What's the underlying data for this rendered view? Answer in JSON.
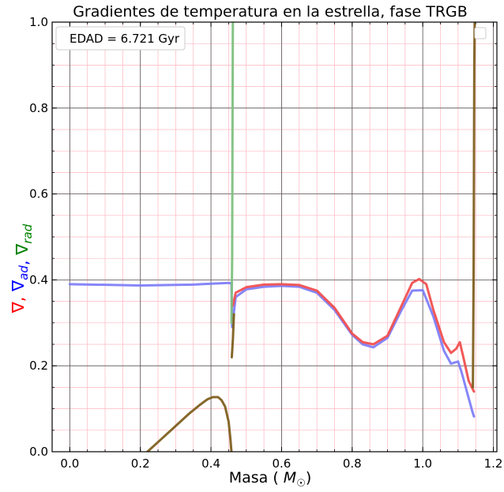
{
  "chart_data": {
    "type": "line",
    "title": "Gradientes de temperatura en la estrella, fase TRGB",
    "xlabel": "Masa (M☉)",
    "ylabel_parts": [
      {
        "text": "∇",
        "color": "#ff0000"
      },
      {
        "text": ", ",
        "color": "#ff0000"
      },
      {
        "text": "∇",
        "sub": "ad",
        "color": "#0000ff"
      },
      {
        "text": ", ",
        "color": "#0000ff"
      },
      {
        "text": "∇",
        "sub": "rad",
        "color": "#008000"
      }
    ],
    "xlim": [
      -0.05,
      1.21
    ],
    "ylim": [
      0.0,
      1.0
    ],
    "xticks": [
      "0.0",
      "0.2",
      "0.4",
      "0.6",
      "0.8",
      "1.0",
      "1.2"
    ],
    "xtick_values": [
      0.0,
      0.2,
      0.4,
      0.6,
      0.8,
      1.0,
      1.2
    ],
    "yticks": [
      "0.0",
      "0.2",
      "0.4",
      "0.6",
      "0.8",
      "1.0"
    ],
    "ytick_values": [
      0.0,
      0.2,
      0.4,
      0.6,
      0.8,
      1.0
    ],
    "grid": {
      "major": true,
      "minor": true,
      "major_color": "#555555",
      "minor_color": "#ffb6c1"
    },
    "legend": {
      "text": "EDAD = 6.721 Gyr",
      "placement": "top-left"
    },
    "series": [
      {
        "color": "#8080f8",
        "x": [
          0.0,
          0.2,
          0.35,
          0.45,
          0.458,
          0.46,
          0.47,
          0.5,
          0.55,
          0.6,
          0.65,
          0.7,
          0.75,
          0.8,
          0.83,
          0.86,
          0.9,
          0.94,
          0.97,
          1.0,
          1.03,
          1.06,
          1.08,
          1.1,
          1.11,
          1.125,
          1.14,
          1.145
        ],
        "y": [
          0.39,
          0.387,
          0.389,
          0.393,
          0.392,
          0.29,
          0.36,
          0.378,
          0.384,
          0.386,
          0.384,
          0.37,
          0.33,
          0.272,
          0.25,
          0.243,
          0.265,
          0.33,
          0.375,
          0.376,
          0.315,
          0.235,
          0.205,
          0.21,
          0.185,
          0.14,
          0.095,
          0.082
        ]
      },
      {
        "color": "#f05050",
        "x": [
          0.462,
          0.47,
          0.5,
          0.55,
          0.6,
          0.65,
          0.7,
          0.75,
          0.8,
          0.83,
          0.86,
          0.9,
          0.94,
          0.97,
          0.99,
          1.01,
          1.03,
          1.06,
          1.08,
          1.095,
          1.105,
          1.115,
          1.13,
          1.145
        ],
        "y": [
          0.34,
          0.37,
          0.383,
          0.389,
          0.39,
          0.388,
          0.375,
          0.335,
          0.275,
          0.255,
          0.25,
          0.27,
          0.34,
          0.393,
          0.402,
          0.39,
          0.33,
          0.255,
          0.23,
          0.24,
          0.255,
          0.22,
          0.165,
          0.14
        ]
      },
      {
        "color": "#80c080",
        "x": [
          0.458,
          0.46,
          0.461,
          0.462,
          0.463
        ],
        "y": [
          0.3,
          0.45,
          0.75,
          1.0,
          1.0
        ]
      },
      {
        "color": "#806020",
        "x": [
          0.22,
          0.26,
          0.3,
          0.34,
          0.37,
          0.39,
          0.405,
          0.42,
          0.43,
          0.44,
          0.45,
          0.455,
          0.458
        ],
        "y": [
          0.0,
          0.03,
          0.06,
          0.09,
          0.11,
          0.122,
          0.127,
          0.127,
          0.12,
          0.105,
          0.07,
          0.03,
          0.0
        ]
      },
      {
        "color": "#806020",
        "x": [
          0.459,
          0.462,
          0.465
        ],
        "y": [
          0.22,
          0.26,
          0.32
        ]
      },
      {
        "color": "#806020",
        "x": [
          1.142,
          1.144,
          1.146,
          1.147
        ],
        "y": [
          0.15,
          0.4,
          0.9,
          1.0
        ]
      }
    ]
  }
}
